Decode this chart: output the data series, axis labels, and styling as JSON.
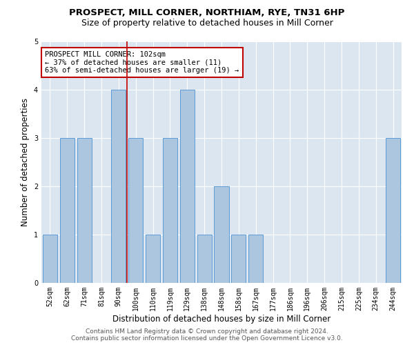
{
  "title": "PROSPECT, MILL CORNER, NORTHIAM, RYE, TN31 6HP",
  "subtitle": "Size of property relative to detached houses in Mill Corner",
  "xlabel": "Distribution of detached houses by size in Mill Corner",
  "ylabel": "Number of detached properties",
  "categories": [
    "52sqm",
    "62sqm",
    "71sqm",
    "81sqm",
    "90sqm",
    "100sqm",
    "110sqm",
    "119sqm",
    "129sqm",
    "138sqm",
    "148sqm",
    "158sqm",
    "167sqm",
    "177sqm",
    "186sqm",
    "196sqm",
    "206sqm",
    "215sqm",
    "225sqm",
    "234sqm",
    "244sqm"
  ],
  "values": [
    1,
    3,
    3,
    0,
    4,
    3,
    1,
    3,
    4,
    1,
    2,
    1,
    1,
    0,
    0,
    0,
    0,
    0,
    0,
    0,
    3
  ],
  "bar_color": "#adc6e0",
  "bar_edge_color": "#5b9bd5",
  "background_color": "#dce6f1",
  "ref_line_index": 4.5,
  "ref_line_color": "#c00000",
  "ylim": [
    0,
    5
  ],
  "yticks": [
    0,
    1,
    2,
    3,
    4,
    5
  ],
  "annotation_text": "PROSPECT MILL CORNER: 102sqm\n← 37% of detached houses are smaller (11)\n63% of semi-detached houses are larger (19) →",
  "annotation_box_color": "#ffffff",
  "annotation_box_edge": "#c00000",
  "footer1": "Contains HM Land Registry data © Crown copyright and database right 2024.",
  "footer2": "Contains public sector information licensed under the Open Government Licence v3.0.",
  "title_fontsize": 9.5,
  "subtitle_fontsize": 9,
  "xlabel_fontsize": 8.5,
  "ylabel_fontsize": 8.5,
  "tick_fontsize": 7,
  "annotation_fontsize": 7.5,
  "footer_fontsize": 6.5
}
